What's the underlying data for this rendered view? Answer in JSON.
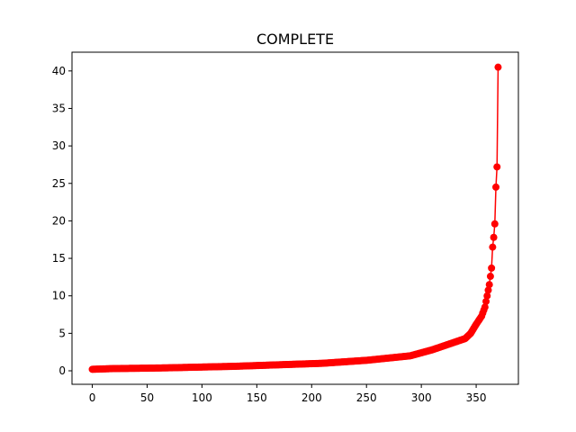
{
  "chart_data": {
    "type": "line",
    "title": "COMPLETE",
    "xlabel": "",
    "ylabel": "",
    "xlim": [
      -18.5,
      388.5
    ],
    "ylim": [
      -1.8,
      42.5
    ],
    "xticks": [
      0,
      50,
      100,
      150,
      200,
      250,
      300,
      350
    ],
    "yticks": [
      0,
      5,
      10,
      15,
      20,
      25,
      30,
      35,
      40
    ],
    "grid": false,
    "legend": "none",
    "marker": "circle",
    "color": "#ff0000",
    "series_anchors": [
      [
        0,
        0.2
      ],
      [
        10,
        0.25
      ],
      [
        20,
        0.3
      ],
      [
        50,
        0.35
      ],
      [
        70,
        0.4
      ],
      [
        100,
        0.5
      ],
      [
        130,
        0.6
      ],
      [
        150,
        0.7
      ],
      [
        170,
        0.8
      ],
      [
        190,
        0.9
      ],
      [
        210,
        1.0
      ],
      [
        230,
        1.2
      ],
      [
        250,
        1.4
      ],
      [
        270,
        1.7
      ],
      [
        290,
        2.0
      ],
      [
        300,
        2.4
      ],
      [
        310,
        2.8
      ],
      [
        320,
        3.3
      ],
      [
        330,
        3.8
      ],
      [
        340,
        4.3
      ],
      [
        345,
        5.0
      ],
      [
        350,
        6.2
      ],
      [
        355,
        7.3
      ],
      [
        358,
        8.5
      ],
      [
        360,
        10.0
      ],
      [
        362,
        11.5
      ],
      [
        364,
        13.7
      ],
      [
        365,
        16.5
      ],
      [
        366,
        17.8
      ],
      [
        367,
        19.6
      ],
      [
        368,
        24.5
      ],
      [
        369,
        27.2
      ],
      [
        370,
        40.5
      ]
    ]
  }
}
